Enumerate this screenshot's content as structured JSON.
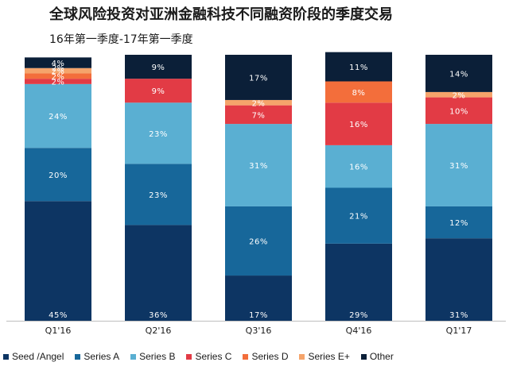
{
  "title": "全球风险投资对亚洲金融科技不同融资阶段的季度交易",
  "subtitle": "16年第一季度-17年第一季度",
  "colors": {
    "seed": "#0d3563",
    "seriesA": "#17679a",
    "seriesB": "#5aafd2",
    "seriesC": "#e23b45",
    "seriesD": "#f36e3b",
    "seriesEplus": "#f5a46b",
    "other": "#0b1f38"
  },
  "chart_data": {
    "type": "bar",
    "stacked": true,
    "normalized": true,
    "title": "全球风险投资对亚洲金融科技不同融资阶段的季度交易",
    "subtitle": "16年第一季度-17年第一季度",
    "categories": [
      "Q1'16",
      "Q2'16",
      "Q3'16",
      "Q4'16",
      "Q1'17"
    ],
    "ylim": [
      0,
      100
    ],
    "series": [
      {
        "name": "Seed /Angel",
        "values": [
          45,
          36,
          17,
          29,
          31
        ],
        "labels": [
          "45%",
          "36%",
          "17%",
          "29%",
          "31%"
        ]
      },
      {
        "name": "Series A",
        "values": [
          20,
          23,
          26,
          21,
          12
        ],
        "labels": [
          "20%",
          "23%",
          "26%",
          "21%",
          "12%"
        ]
      },
      {
        "name": "Series B",
        "values": [
          24,
          23,
          31,
          16,
          31
        ],
        "labels": [
          "24%",
          "23%",
          "31%",
          "16%",
          "31%"
        ]
      },
      {
        "name": "Series C",
        "values": [
          2,
          9,
          7,
          16,
          10
        ],
        "labels": [
          "2%",
          "9%",
          "7%",
          "16%",
          "10%"
        ]
      },
      {
        "name": "Series D",
        "values": [
          2,
          0,
          0,
          8,
          0
        ],
        "labels": [
          "2%",
          "",
          "",
          "8%",
          ""
        ]
      },
      {
        "name": "Series E+",
        "values": [
          2,
          0,
          2,
          0,
          2
        ],
        "labels": [
          "2%",
          "",
          "2%",
          "",
          "2%"
        ]
      },
      {
        "name": "Other",
        "values": [
          4,
          9,
          17,
          11,
          14
        ],
        "labels": [
          "4%",
          "9%",
          "17%",
          "11%",
          "14%"
        ]
      }
    ],
    "extra_labels": [
      {
        "category_index": 0,
        "series_index": 2,
        "text": "2%"
      }
    ],
    "legend": {
      "position": "bottom",
      "entries": [
        "Seed /Angel",
        "Series A",
        "Series B",
        "Series C",
        "Series D",
        "Series E+",
        "Other"
      ]
    }
  }
}
